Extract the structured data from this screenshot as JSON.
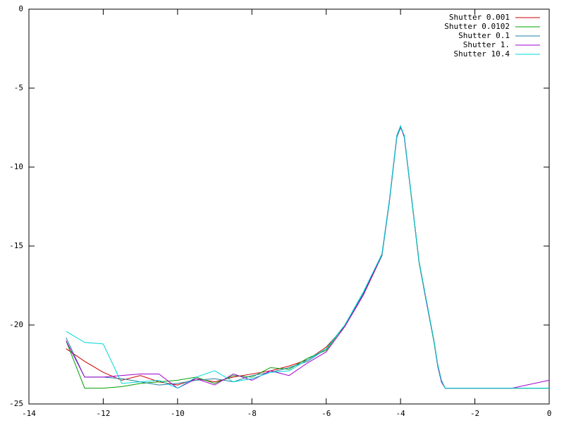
{
  "chart_data": {
    "type": "line",
    "x": [
      -13,
      -12.5,
      -12,
      -11.5,
      -11,
      -10.5,
      -10,
      -9.5,
      -9,
      -8.5,
      -8,
      -7.5,
      -7,
      -6.5,
      -6,
      -5.5,
      -5,
      -4.5,
      -4.3,
      -4.1,
      -4,
      -3.9,
      -3.7,
      -3.5,
      -3.3,
      -3.1,
      -3,
      -2.9,
      -2.8,
      -2,
      -1,
      0
    ],
    "series": [
      {
        "name": "Shutter 0.001",
        "color": "#d00000",
        "values": [
          -21.5,
          -22.3,
          -23,
          -23.5,
          -23.2,
          -23.6,
          -23.8,
          -23.4,
          -23.6,
          -23.3,
          -23.1,
          -22.9,
          -22.6,
          -22.2,
          -21.4,
          -20.1,
          -18.1,
          -15.6,
          -12.2,
          -8.1,
          -7.5,
          -8,
          -12,
          -16,
          -18.5,
          -21,
          -22.5,
          -23.5,
          -24,
          -24,
          -24,
          -24
        ]
      },
      {
        "name": "Shutter 0.0102",
        "color": "#00a000",
        "values": [
          -21,
          -24,
          -24,
          -23.9,
          -23.7,
          -23.6,
          -23.5,
          -23.3,
          -23.7,
          -23.2,
          -23.3,
          -22.7,
          -22.8,
          -22.1,
          -21.6,
          -20,
          -18,
          -15.5,
          -12.1,
          -8,
          -7.4,
          -8.1,
          -12.1,
          -16.1,
          -18.6,
          -21.1,
          -22.6,
          -23.6,
          -24,
          -24,
          -24,
          -24
        ]
      },
      {
        "name": "Shutter 0.1",
        "color": "#1f7fa0",
        "values": [
          -20.8,
          -23.3,
          -23.3,
          -23.4,
          -23.6,
          -23.8,
          -23.7,
          -23.5,
          -23.4,
          -23.6,
          -23.2,
          -23,
          -22.7,
          -22.3,
          -21.5,
          -20,
          -18,
          -15.6,
          -12.2,
          -8.1,
          -7.5,
          -8,
          -12,
          -16,
          -18.5,
          -21,
          -22.5,
          -23.5,
          -24,
          -24,
          -24,
          -24
        ]
      },
      {
        "name": "Shutter 1.",
        "color": "#a000d0",
        "values": [
          -21,
          -23.3,
          -23.3,
          -23.2,
          -23.1,
          -23.1,
          -24,
          -23.4,
          -23.8,
          -23.1,
          -23.5,
          -22.9,
          -23.2,
          -22.4,
          -21.7,
          -20.1,
          -18.1,
          -15.5,
          -12.1,
          -8,
          -7.4,
          -8.1,
          -12,
          -16,
          -18.6,
          -21,
          -22.6,
          -23.6,
          -24,
          -24,
          -24,
          -23.5
        ]
      },
      {
        "name": "Shutter 10.4",
        "color": "#00d8d8",
        "values": [
          -20.4,
          -21.1,
          -21.2,
          -23.7,
          -23.6,
          -23.5,
          -24,
          -23.3,
          -22.9,
          -23.6,
          -23.4,
          -23,
          -22.9,
          -22.2,
          -21.5,
          -20,
          -17.9,
          -15.5,
          -12.1,
          -8,
          -7.4,
          -8,
          -12,
          -16,
          -18.5,
          -21,
          -22.5,
          -23.5,
          -24,
          -24,
          -24,
          -24
        ]
      }
    ],
    "xlim": [
      -14,
      0
    ],
    "ylim": [
      -25,
      0
    ],
    "xticks": [
      -14,
      -12,
      -10,
      -8,
      -6,
      -4,
      -2,
      0
    ],
    "yticks": [
      0,
      -5,
      -10,
      -15,
      -20,
      -25
    ],
    "legend": "top-right"
  }
}
